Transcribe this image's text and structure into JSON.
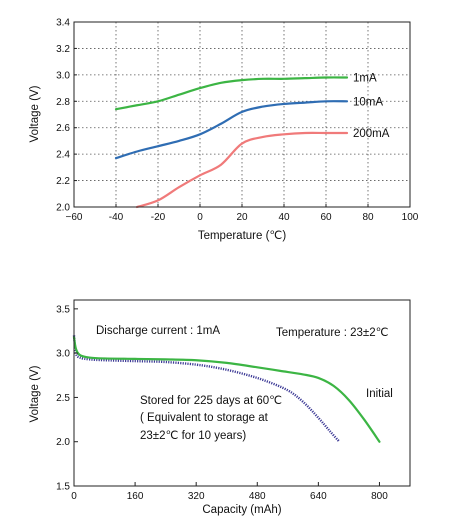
{
  "chart_data": [
    {
      "type": "line",
      "title": "",
      "xlabel": "Temperature (℃)",
      "ylabel": "Voltage (V)",
      "xlim": [
        -60,
        100
      ],
      "ylim": [
        2.0,
        3.4
      ],
      "xticks": [
        -60,
        -40,
        -20,
        0,
        20,
        40,
        60,
        80,
        100
      ],
      "yticks": [
        2.0,
        2.2,
        2.4,
        2.6,
        2.8,
        3.0,
        3.2,
        3.4
      ],
      "xtick_labels": [
        "−60",
        "-40",
        "-20",
        "0",
        "20",
        "40",
        "60",
        "80",
        "100"
      ],
      "ytick_labels": [
        "2.0",
        "2.2",
        "2.4",
        "2.6",
        "2.8",
        "3.0",
        "3.2",
        "3.4"
      ],
      "grid": true,
      "series": [
        {
          "name": "1mA",
          "color": "#3cb544",
          "x": [
            -40,
            -30,
            -20,
            -10,
            0,
            10,
            20,
            30,
            40,
            50,
            60,
            70
          ],
          "y": [
            2.74,
            2.77,
            2.8,
            2.85,
            2.9,
            2.94,
            2.96,
            2.97,
            2.97,
            2.975,
            2.98,
            2.98
          ]
        },
        {
          "name": "10mA",
          "color": "#2f6db3",
          "x": [
            -40,
            -30,
            -20,
            -10,
            0,
            10,
            20,
            30,
            40,
            50,
            60,
            70
          ],
          "y": [
            2.37,
            2.42,
            2.46,
            2.5,
            2.55,
            2.63,
            2.72,
            2.76,
            2.78,
            2.79,
            2.8,
            2.8
          ]
        },
        {
          "name": "200mA",
          "color": "#f07a7a",
          "x": [
            -30,
            -20,
            -10,
            0,
            10,
            20,
            30,
            40,
            50,
            60,
            70
          ],
          "y": [
            2.0,
            2.05,
            2.15,
            2.24,
            2.32,
            2.48,
            2.53,
            2.55,
            2.56,
            2.56,
            2.56
          ]
        }
      ]
    },
    {
      "type": "line",
      "title": "",
      "xlabel": "Capacity (mAh)",
      "ylabel": "Voltage (V)",
      "xlim": [
        0,
        880
      ],
      "ylim": [
        1.5,
        3.6
      ],
      "xticks": [
        0,
        160,
        320,
        480,
        640,
        800
      ],
      "yticks": [
        1.5,
        2.0,
        2.5,
        3.0,
        3.5
      ],
      "xtick_labels": [
        "0",
        "160",
        "320",
        "480",
        "640",
        "800"
      ],
      "ytick_labels": [
        "1.5",
        "2.0",
        "2.5",
        "3.0",
        "3.5"
      ],
      "grid": false,
      "annotations": {
        "discharge": "Discharge current : 1mA",
        "temperature": "Temperature : 23±2℃",
        "stored_line1": "Stored for 225 days at 60℃",
        "stored_line2": "( Equivalent to storage at",
        "stored_line3": "23±2℃  for 10 years)"
      },
      "series": [
        {
          "name": "Initial",
          "color": "#3cb544",
          "x": [
            0,
            5,
            15,
            40,
            80,
            160,
            240,
            320,
            400,
            480,
            540,
            600,
            640,
            680,
            720,
            760,
            800
          ],
          "y": [
            3.18,
            3.05,
            2.98,
            2.95,
            2.94,
            2.935,
            2.93,
            2.92,
            2.89,
            2.84,
            2.8,
            2.76,
            2.72,
            2.63,
            2.47,
            2.25,
            2.0
          ]
        },
        {
          "name": "Stored for 225 days at 60℃",
          "color": "#3d3a96",
          "x": [
            0,
            5,
            15,
            40,
            80,
            160,
            240,
            320,
            380,
            440,
            500,
            560,
            600,
            640,
            670,
            695
          ],
          "y": [
            3.2,
            3.0,
            2.95,
            2.93,
            2.92,
            2.91,
            2.9,
            2.87,
            2.83,
            2.77,
            2.69,
            2.58,
            2.45,
            2.27,
            2.12,
            2.0
          ]
        }
      ]
    }
  ]
}
